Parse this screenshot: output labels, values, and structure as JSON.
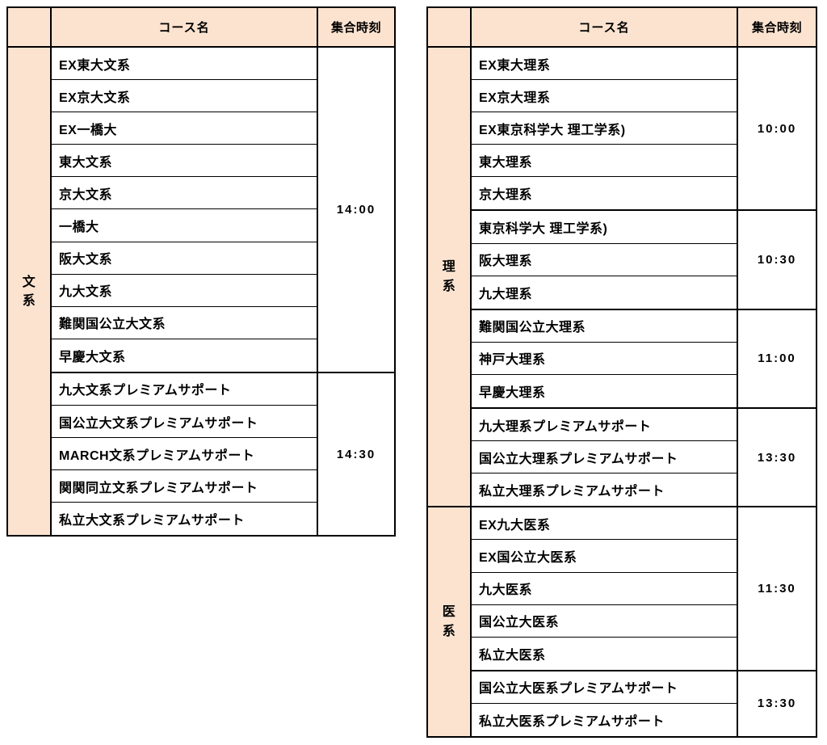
{
  "document": {
    "kind": "course meeting-time schedule",
    "background": "#ffffff"
  },
  "colors": {
    "header_bg": "#fbe3d0",
    "border": "#000000",
    "cell_bg": "#ffffff",
    "text": "#000000"
  },
  "tables": [
    {
      "id": "left",
      "header": {
        "course": "コース名",
        "time": "集合時刻"
      },
      "sections": [
        {
          "category": "文系",
          "groups": [
            {
              "time": "14:00",
              "courses": [
                "EX東大文系",
                "EX京大文系",
                "EX一橋大",
                "東大文系",
                "京大文系",
                "一橋大",
                "阪大文系",
                "九大文系",
                "難関国公立大文系",
                "早慶大文系"
              ]
            },
            {
              "time": "14:30",
              "courses": [
                "九大文系プレミアムサポート",
                "国公立大文系プレミアムサポート",
                "MARCH文系プレミアムサポート",
                "関関同立文系プレミアムサポート",
                "私立大文系プレミアムサポート"
              ]
            }
          ]
        }
      ]
    },
    {
      "id": "right",
      "header": {
        "course": "コース名",
        "time": "集合時刻"
      },
      "sections": [
        {
          "category": "理系",
          "groups": [
            {
              "time": "10:00",
              "courses": [
                "EX東大理系",
                "EX京大理系",
                "EX東京科学大 理工学系)",
                "東大理系",
                "京大理系"
              ]
            },
            {
              "time": "10:30",
              "courses": [
                "東京科学大 理工学系)",
                "阪大理系",
                "九大理系"
              ]
            },
            {
              "time": "11:00",
              "courses": [
                "難関国公立大理系",
                "神戸大理系",
                "早慶大理系"
              ]
            },
            {
              "time": "13:30",
              "courses": [
                "九大理系プレミアムサポート",
                "国公立大理系プレミアムサポート",
                "私立大理系プレミアムサポート"
              ]
            }
          ]
        },
        {
          "category": "医系",
          "groups": [
            {
              "time": "11:30",
              "courses": [
                "EX九大医系",
                "EX国公立大医系",
                "九大医系",
                "国公立大医系",
                "私立大医系"
              ]
            },
            {
              "time": "13:30",
              "courses": [
                "国公立大医系プレミアムサポート",
                "私立大医系プレミアムサポート"
              ]
            }
          ]
        }
      ]
    }
  ]
}
